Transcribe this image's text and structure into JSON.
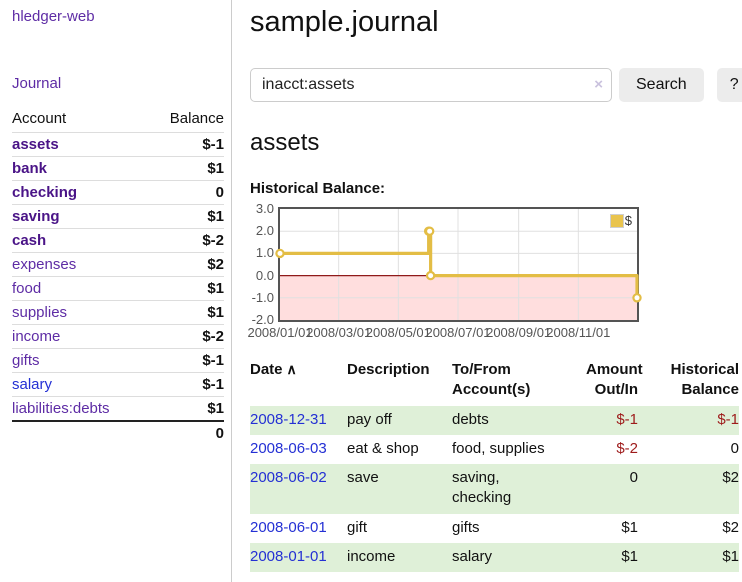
{
  "app": {
    "title": "hledger-web"
  },
  "sidebar": {
    "nav_journal": "Journal",
    "accounts_table": {
      "headers": {
        "account": "Account",
        "balance": "Balance"
      },
      "rows": [
        {
          "account": "assets",
          "balance": "$-1"
        },
        {
          "account": "bank",
          "balance": "$1"
        },
        {
          "account": "checking",
          "balance": "0"
        },
        {
          "account": "saving",
          "balance": "$1"
        },
        {
          "account": "cash",
          "balance": "$-2"
        },
        {
          "account": "expenses",
          "balance": "$2"
        },
        {
          "account": "food",
          "balance": "$1"
        },
        {
          "account": "supplies",
          "balance": "$1"
        },
        {
          "account": "income",
          "balance": "$-2"
        },
        {
          "account": "gifts",
          "balance": "$-1"
        },
        {
          "account": "salary",
          "balance": "$-1"
        },
        {
          "account": "liabilities:debts",
          "balance": "$1"
        }
      ],
      "total": "0"
    }
  },
  "header": {
    "title": "sample.journal"
  },
  "search": {
    "value": "inacct:assets",
    "clear_icon": "×",
    "button_label": "Search",
    "help_label": "?"
  },
  "account_page": {
    "heading": "assets",
    "chart_label": "Historical Balance:"
  },
  "chart_data": {
    "type": "line",
    "title": "Historical Balance:",
    "series": [
      {
        "name": "$",
        "step": true,
        "points": [
          [
            "2008-01-01",
            1
          ],
          [
            "2008-06-01",
            2
          ],
          [
            "2008-06-02",
            2
          ],
          [
            "2008-06-03",
            0
          ],
          [
            "2008-12-31",
            -1
          ]
        ]
      }
    ],
    "x_range": [
      "2008-01-01",
      "2008-12-31"
    ],
    "ylim": [
      -2,
      3
    ],
    "y_tick_labels": [
      "3.0",
      "2.0",
      "1.0",
      "0.0",
      "-1.0",
      "-2.0"
    ],
    "x_tick_labels": [
      "2008/01/01",
      "2008/03/01",
      "2008/05/01",
      "2008/07/01",
      "2008/09/01",
      "2008/11/01"
    ],
    "legend": "$",
    "legend_position": "top-right",
    "grid": true,
    "colors": {
      "line": "#e3bd45",
      "marker_fill": "#ffffff",
      "fill_negative": "#ffdede",
      "zero_line": "#8f1a1a",
      "gridline": "#e0e0e0",
      "border": "#545454"
    }
  },
  "register_table": {
    "headers": {
      "date": "Date",
      "description": "Description",
      "to_from": "To/From\nAccount(s)",
      "amount": "Amount\nOut/In",
      "balance": "Historical\nBalance"
    },
    "sort_icon": "∧",
    "rows": [
      {
        "date": "2008-12-31",
        "description": "pay off",
        "to_from": "debts",
        "amount": "$-1",
        "balance": "$-1"
      },
      {
        "date": "2008-06-03",
        "description": "eat & shop",
        "to_from": "food, supplies",
        "amount": "$-2",
        "balance": "0"
      },
      {
        "date": "2008-06-02",
        "description": "save",
        "to_from": "saving,\nchecking",
        "amount": "0",
        "balance": "$2"
      },
      {
        "date": "2008-06-01",
        "description": "gift",
        "to_from": "gifts",
        "amount": "$1",
        "balance": "$2"
      },
      {
        "date": "2008-01-01",
        "description": "income",
        "to_from": "salary",
        "amount": "$1",
        "balance": "$1"
      }
    ]
  }
}
